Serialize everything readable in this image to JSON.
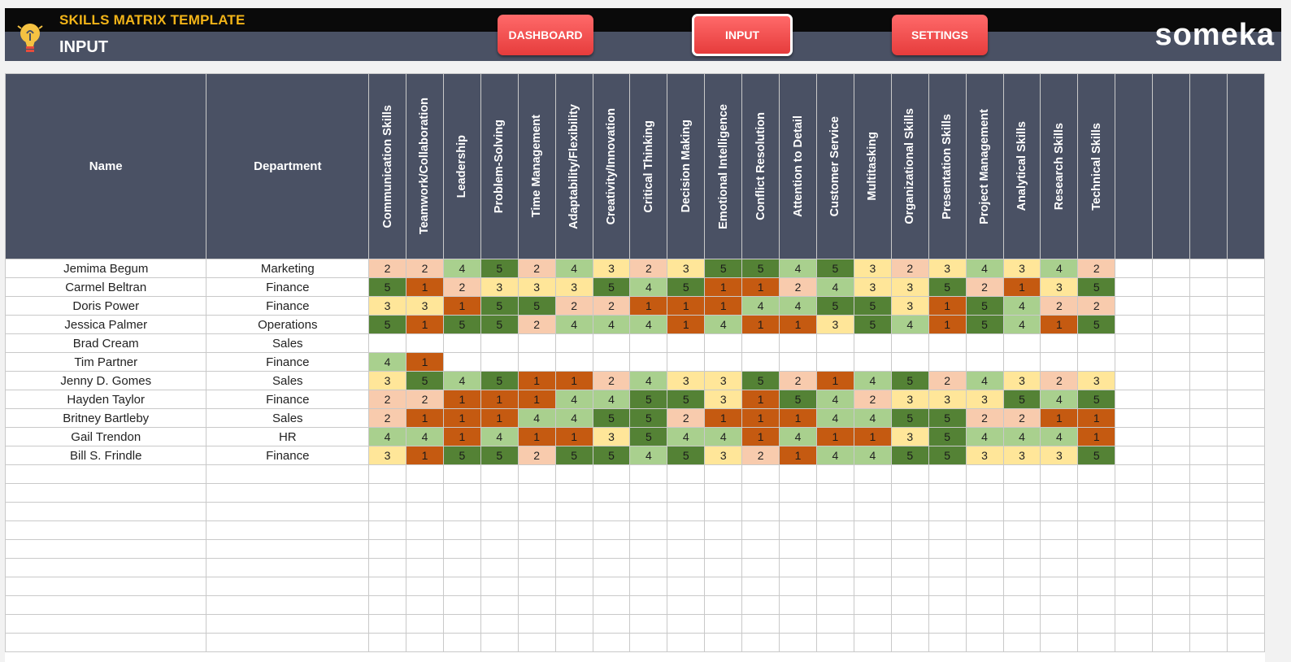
{
  "header": {
    "app_title": "SKILLS MATRIX TEMPLATE",
    "page_name": "INPUT",
    "brand": "someka",
    "nav": [
      {
        "label": "DASHBOARD",
        "active": false
      },
      {
        "label": "INPUT",
        "active": true
      },
      {
        "label": "SETTINGS",
        "active": false
      }
    ]
  },
  "table": {
    "col_name": "Name",
    "col_department": "Department",
    "skills": [
      "Communication Skills",
      "Teamwork/Collaboration",
      "Leadership",
      "Problem-Solving",
      "Time Management",
      "Adaptability/Flexibility",
      "Creativity/Innovation",
      "Critical Thinking",
      "Decision Making",
      "Emotional Intelligence",
      "Conflict Resolution",
      "Attention to Detail",
      "Customer Service",
      "Multitasking",
      "Organizational Skills",
      "Presentation Skills",
      "Project Management",
      "Analytical Skills",
      "Research Skills",
      "Technical Skills"
    ],
    "extra_empty_columns": 4,
    "empty_rows": 10,
    "rows": [
      {
        "name": "Jemima Begum",
        "department": "Marketing",
        "scores": [
          2,
          2,
          4,
          5,
          2,
          4,
          3,
          2,
          3,
          5,
          5,
          4,
          5,
          3,
          2,
          3,
          4,
          3,
          4,
          2
        ]
      },
      {
        "name": "Carmel Beltran",
        "department": "Finance",
        "scores": [
          5,
          1,
          2,
          3,
          3,
          3,
          5,
          4,
          5,
          1,
          1,
          2,
          4,
          3,
          3,
          5,
          2,
          1,
          3,
          5
        ]
      },
      {
        "name": "Doris Power",
        "department": "Finance",
        "scores": [
          3,
          3,
          1,
          5,
          5,
          2,
          2,
          1,
          1,
          1,
          4,
          4,
          5,
          5,
          3,
          1,
          5,
          4,
          2,
          2
        ]
      },
      {
        "name": "Jessica Palmer",
        "department": "Operations",
        "scores": [
          5,
          1,
          5,
          5,
          2,
          4,
          4,
          4,
          1,
          4,
          1,
          1,
          3,
          5,
          4,
          1,
          5,
          4,
          1,
          5
        ]
      },
      {
        "name": "Brad Cream",
        "department": "Sales",
        "scores": []
      },
      {
        "name": "Tim Partner",
        "department": "Finance",
        "scores": [
          4,
          1
        ]
      },
      {
        "name": "Jenny D. Gomes",
        "department": "Sales",
        "scores": [
          3,
          5,
          4,
          5,
          1,
          1,
          2,
          4,
          3,
          3,
          5,
          2,
          1,
          4,
          5,
          2,
          4,
          3,
          2,
          3
        ]
      },
      {
        "name": "Hayden Taylor",
        "department": "Finance",
        "scores": [
          2,
          2,
          1,
          1,
          1,
          4,
          4,
          5,
          5,
          3,
          1,
          5,
          4,
          2,
          3,
          3,
          3,
          5,
          4,
          5
        ]
      },
      {
        "name": "Britney Bartleby",
        "department": "Sales",
        "scores": [
          2,
          1,
          1,
          1,
          4,
          4,
          5,
          5,
          2,
          1,
          1,
          1,
          4,
          4,
          5,
          5,
          2,
          2,
          1,
          1
        ]
      },
      {
        "name": "Gail Trendon",
        "department": "HR",
        "scores": [
          4,
          4,
          1,
          4,
          1,
          1,
          3,
          5,
          4,
          4,
          1,
          4,
          1,
          1,
          3,
          5,
          4,
          4,
          4,
          1
        ]
      },
      {
        "name": "Bill S. Frindle",
        "department": "Finance",
        "scores": [
          3,
          1,
          5,
          5,
          2,
          5,
          5,
          4,
          5,
          3,
          2,
          1,
          4,
          4,
          5,
          5,
          3,
          3,
          3,
          5
        ]
      }
    ]
  },
  "score_colors": {
    "1": "#c55a11",
    "2": "#f8cbad",
    "3": "#ffe699",
    "4": "#a9d08e",
    "5": "#548235"
  }
}
